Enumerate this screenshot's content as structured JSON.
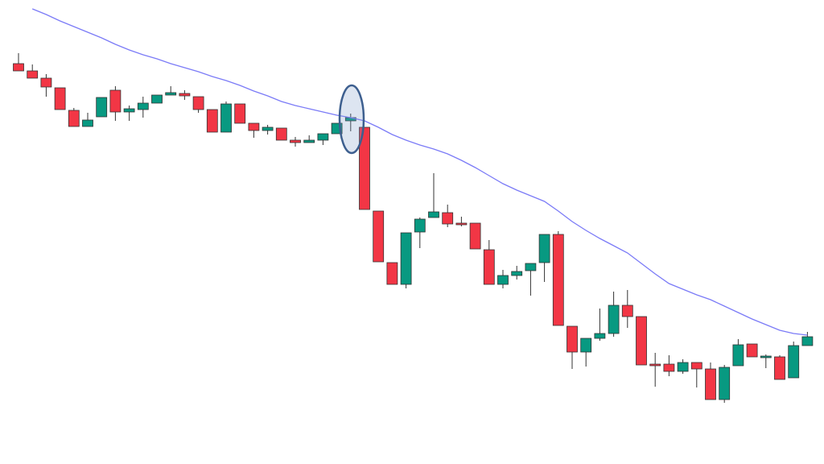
{
  "chart_data": {
    "type": "candlestick",
    "ylim": [
      0,
      576
    ],
    "up_color": "#089981",
    "down_color": "#f23645",
    "open": [
      497,
      488,
      479,
      467,
      439,
      419,
      431,
      464,
      437,
      440,
      448,
      458,
      460,
      456,
      440,
      412,
      447,
      423,
      414,
      417,
      402,
      399,
      402,
      410,
      426,
      418,
      314,
      250,
      223,
      288,
      306,
      312,
      299,
      299,
      266,
      223,
      234,
      240,
      250,
      285,
      171,
      139,
      156,
      162,
      197,
      183,
      124,
      124,
      115,
      126,
      118,
      80,
      122,
      149,
      132,
      133,
      107,
      147
    ],
    "high": [
      510,
      496,
      484,
      467,
      442,
      436,
      455,
      469,
      445,
      456,
      458,
      469,
      464,
      456,
      440,
      450,
      447,
      423,
      421,
      417,
      406,
      408,
      410,
      423,
      435,
      418,
      314,
      250,
      287,
      306,
      361,
      322,
      307,
      299,
      278,
      241,
      246,
      249,
      285,
      289,
      171,
      156,
      193,
      214,
      216,
      183,
      138,
      135,
      130,
      126,
      126,
      123,
      155,
      149,
      136,
      135,
      152,
      164
    ],
    "low": [
      488,
      479,
      456,
      440,
      419,
      419,
      431,
      426,
      426,
      430,
      448,
      458,
      452,
      436,
      412,
      412,
      423,
      405,
      409,
      402,
      394,
      399,
      396,
      410,
      413,
      316,
      251,
      223,
      218,
      268,
      306,
      294,
      295,
      267,
      223,
      218,
      229,
      209,
      226,
      172,
      118,
      121,
      153,
      158,
      169,
      123,
      96,
      109,
      112,
      95,
      80,
      76,
      122,
      133,
      119,
      105,
      107,
      147
    ],
    "close": [
      488,
      479,
      468,
      440,
      419,
      427,
      455,
      437,
      441,
      448,
      458,
      461,
      457,
      440,
      412,
      447,
      423,
      414,
      418,
      402,
      399,
      402,
      410,
      423,
      430,
      316,
      251,
      223,
      287,
      304,
      313,
      298,
      297,
      267,
      223,
      234,
      239,
      249,
      285,
      172,
      139,
      156,
      162,
      197,
      183,
      123,
      122,
      115,
      126,
      118,
      80,
      120,
      148,
      133,
      134,
      105,
      147,
      158
    ],
    "moving_average": {
      "color": "#7b7bf7",
      "values": [
        null,
        565,
        558,
        550,
        543,
        536,
        529,
        521,
        514,
        508,
        503,
        497,
        492,
        487,
        481,
        476,
        470,
        463,
        457,
        450,
        445,
        441,
        437,
        433,
        430,
        426,
        418,
        409,
        402,
        396,
        391,
        385,
        377,
        368,
        358,
        348,
        340,
        333,
        326,
        314,
        301,
        290,
        280,
        271,
        262,
        249,
        236,
        224,
        217,
        210,
        204,
        196,
        188,
        180,
        173,
        166,
        162,
        160
      ]
    }
  }
}
